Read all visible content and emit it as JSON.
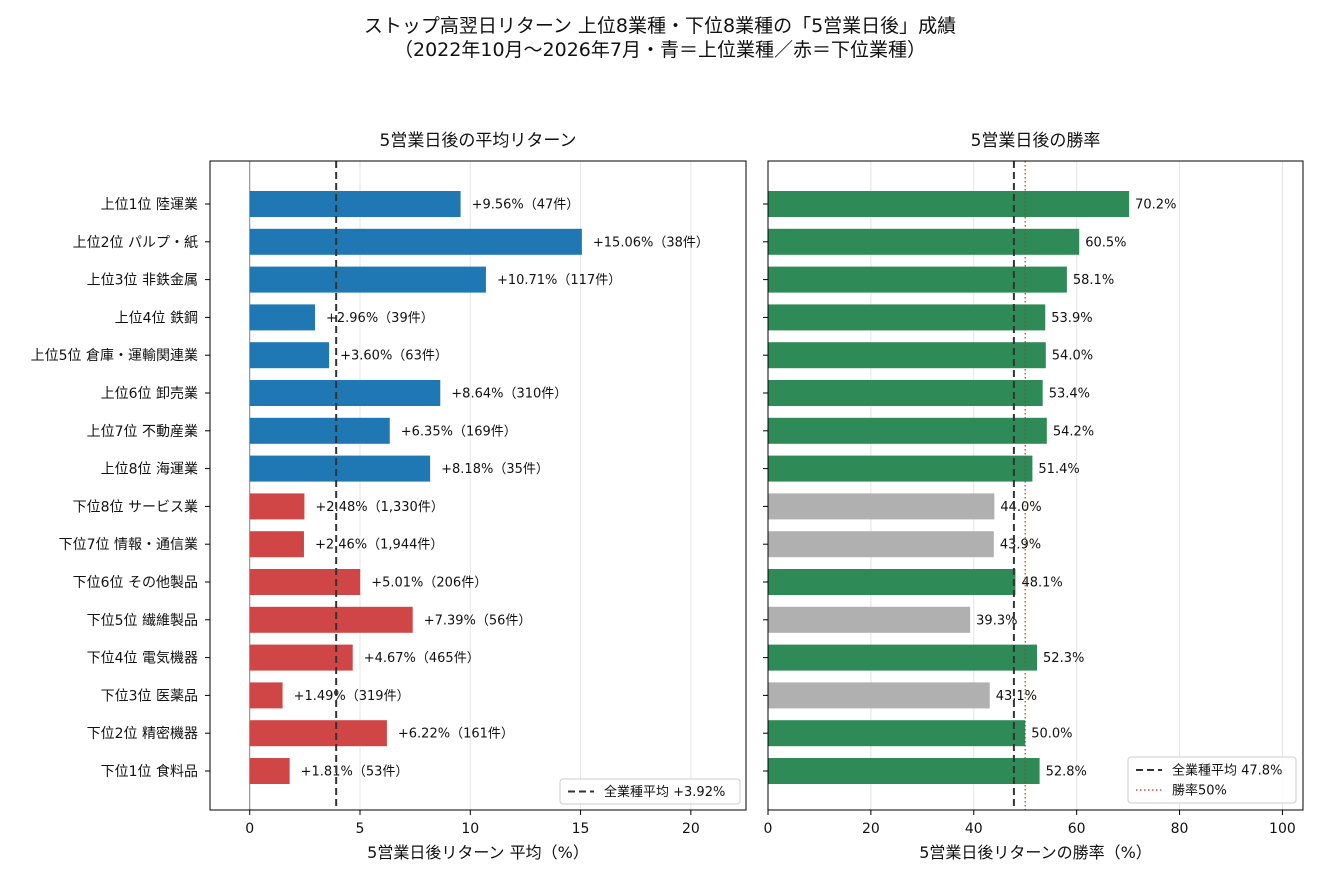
{
  "suptitle": {
    "line1": "ストップ高翌日リターン 上位8業種・下位8業種の「5営業日後」成績",
    "line2": "（2022年10月〜2026年7月・青＝上位業種／赤＝下位業種）"
  },
  "colors": {
    "top_bar": "#1f77b4",
    "bottom_bar": "#d04545",
    "win_bar": "#2e8b57",
    "lose_bar": "#b0b0b0",
    "avg_line": "#333333",
    "fifty_line": "#d62728"
  },
  "chart_data": [
    {
      "type": "bar",
      "orientation": "horizontal",
      "title": "5営業日後の平均リターン",
      "xlabel": "5営業日後リターン 平均（%）",
      "xlim": [
        -1.8,
        22.5
      ],
      "xticks": [
        0,
        5,
        10,
        15,
        20
      ],
      "grid": "x",
      "categories": [
        "上位1位 陸運業",
        "上位2位 パルプ・紙",
        "上位3位 非鉄金属",
        "上位4位 鉄鋼",
        "上位5位 倉庫・運輸関連業",
        "上位6位 卸売業",
        "上位7位 不動産業",
        "上位8位 海運業",
        "下位8位 サービス業",
        "下位7位 情報・通信業",
        "下位6位 その他製品",
        "下位5位 繊維製品",
        "下位4位 電気機器",
        "下位3位 医薬品",
        "下位2位 精密機器",
        "下位1位 食料品"
      ],
      "values": [
        9.56,
        15.06,
        10.71,
        2.96,
        3.6,
        8.64,
        6.35,
        8.18,
        2.48,
        2.46,
        5.01,
        7.39,
        4.67,
        1.49,
        6.22,
        1.81
      ],
      "groups": [
        "top",
        "top",
        "top",
        "top",
        "top",
        "top",
        "top",
        "top",
        "bottom",
        "bottom",
        "bottom",
        "bottom",
        "bottom",
        "bottom",
        "bottom",
        "bottom"
      ],
      "data_labels": [
        "+9.56%（47件）",
        "+15.06%（38件）",
        "+10.71%（117件）",
        "+2.96%（39件）",
        "+3.60%（63件）",
        "+8.64%（310件）",
        "+6.35%（169件）",
        "+8.18%（35件）",
        "+2.48%（1,330件）",
        "+2.46%（1,944件）",
        "+5.01%（206件）",
        "+7.39%（56件）",
        "+4.67%（465件）",
        "+1.49%（319件）",
        "+6.22%（161件）",
        "+1.81%（53件）"
      ],
      "reference_line": {
        "value": 3.92,
        "label": "全業種平均 +3.92%"
      },
      "legend_position": "bottom-right"
    },
    {
      "type": "bar",
      "orientation": "horizontal",
      "title": "5営業日後の勝率",
      "xlabel": "5営業日後リターンの勝率（%）",
      "xlim": [
        0,
        104
      ],
      "xticks": [
        0,
        20,
        40,
        60,
        80,
        100
      ],
      "grid": "x",
      "values": [
        70.2,
        60.5,
        58.1,
        53.9,
        54.0,
        53.4,
        54.2,
        51.4,
        44.0,
        43.9,
        48.1,
        39.3,
        52.3,
        43.1,
        50.0,
        52.8
      ],
      "data_labels": [
        "70.2%",
        "60.5%",
        "58.1%",
        "53.9%",
        "54.0%",
        "53.4%",
        "54.2%",
        "51.4%",
        "44.0%",
        "43.9%",
        "48.1%",
        "39.3%",
        "52.3%",
        "43.1%",
        "50.0%",
        "52.8%"
      ],
      "reference_lines": [
        {
          "value": 47.8,
          "label": "全業種平均 47.8%",
          "style": "dashed"
        },
        {
          "value": 50,
          "label": "勝率50%",
          "style": "dotted"
        }
      ],
      "legend_position": "bottom-right"
    }
  ]
}
